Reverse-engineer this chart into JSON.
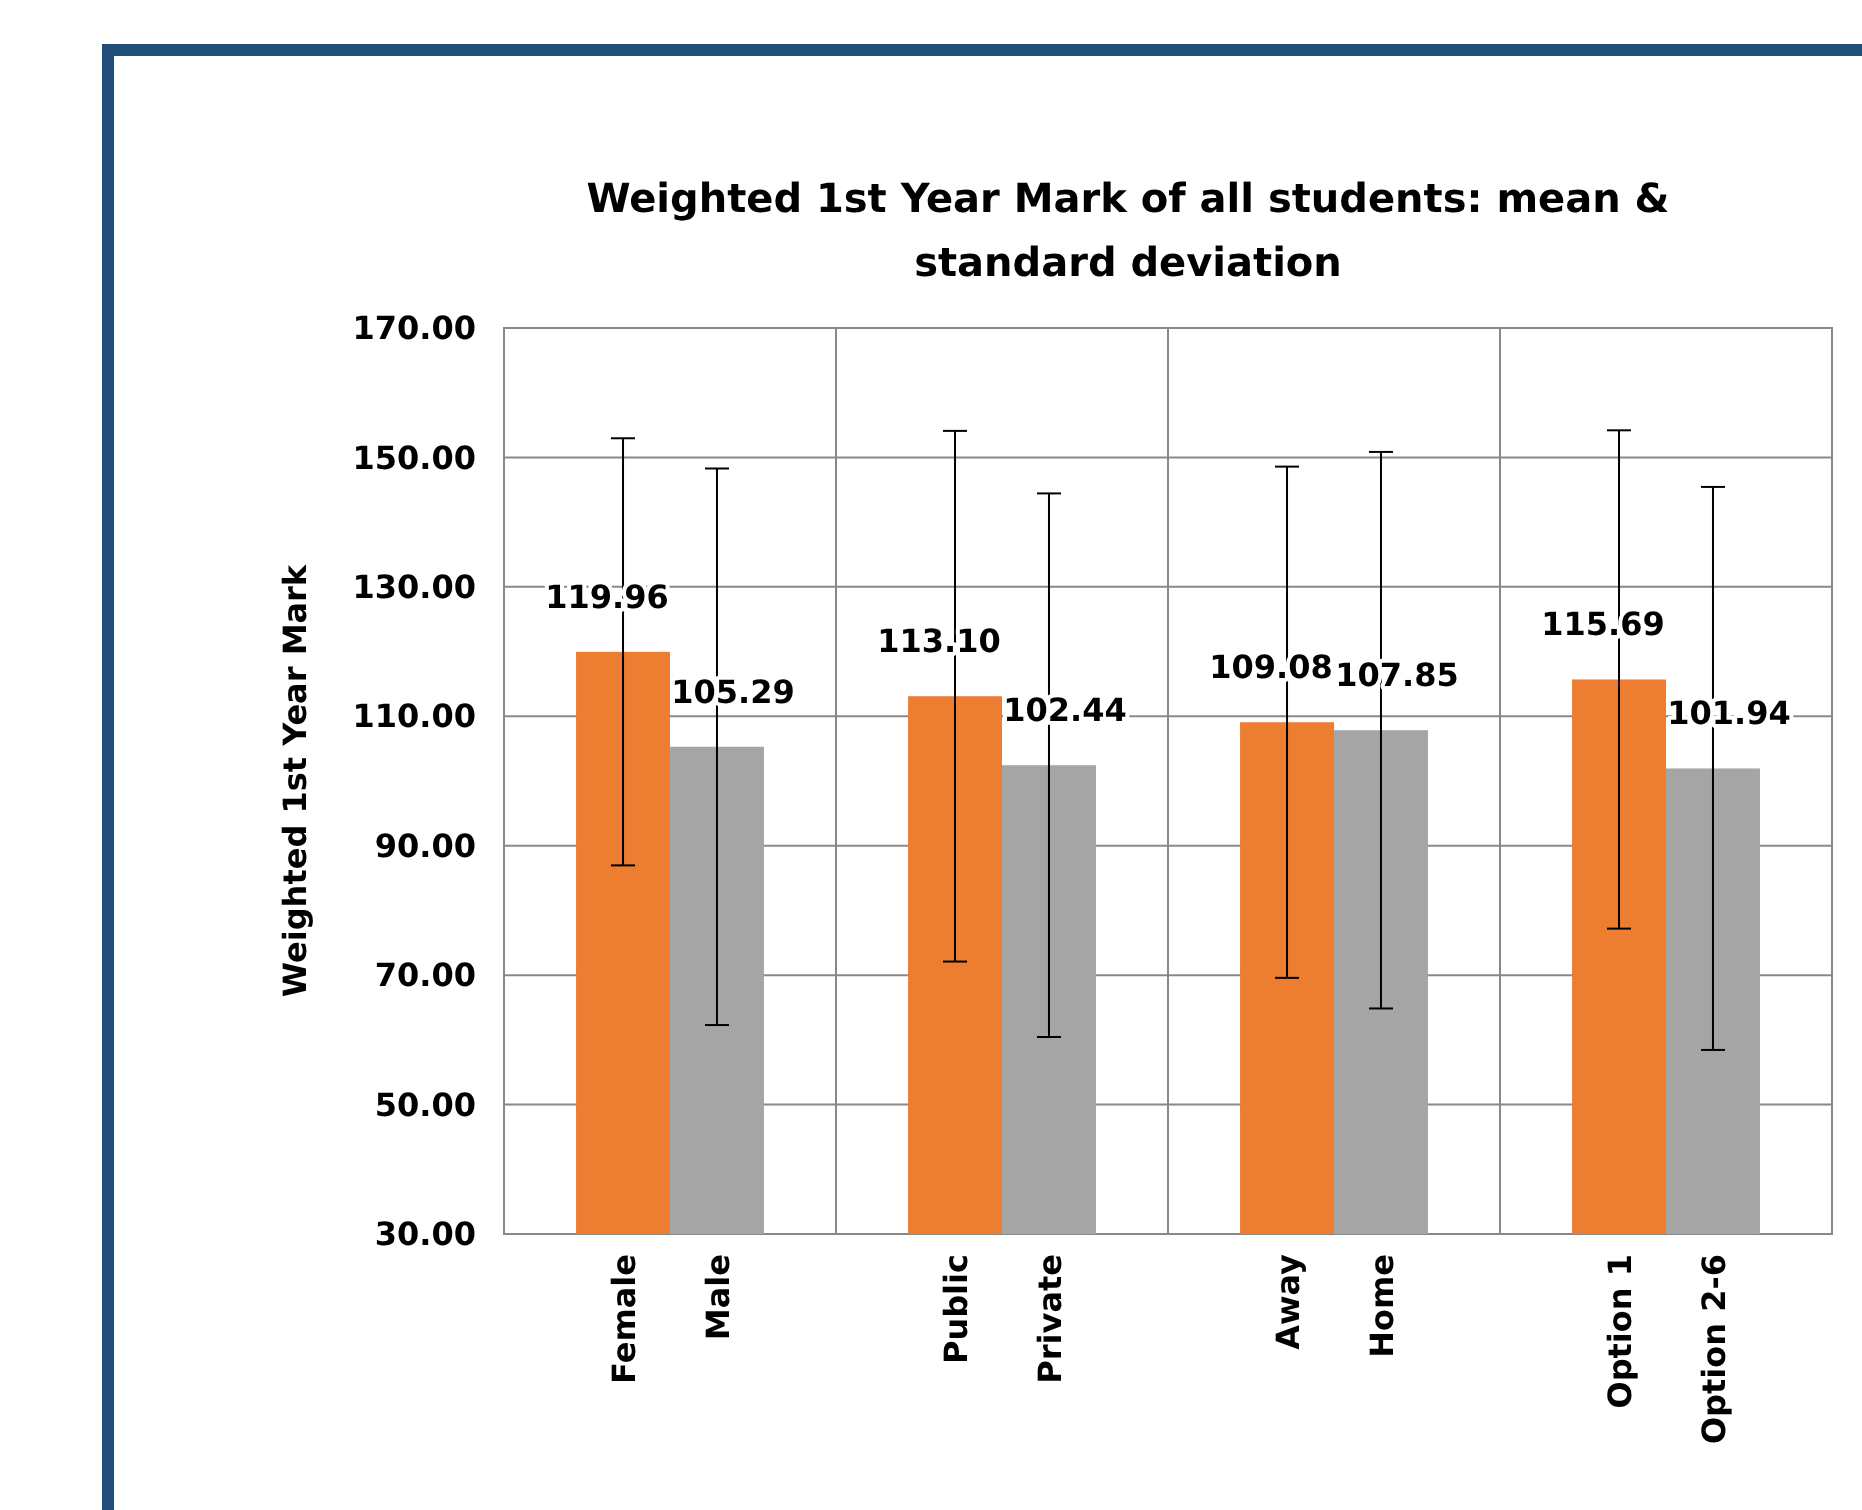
{
  "chart_data": {
    "type": "bar",
    "title": "Weighted 1st Year Mark of all students: mean & standard deviation",
    "ylabel": "Weighted 1st Year Mark",
    "categories": [
      "Female",
      "Male",
      "Public",
      "Private",
      "Away",
      "Home",
      "Option 1",
      "Option 2-6"
    ],
    "values": [
      119.96,
      105.29,
      113.1,
      102.44,
      109.08,
      107.85,
      115.69,
      101.94
    ],
    "value_labels": [
      "119.96",
      "105.29",
      "113.10",
      "102.44",
      "109.08",
      "107.85",
      "115.69",
      "101.94"
    ],
    "errors": [
      33,
      43,
      41,
      42,
      39.5,
      43,
      38.5,
      43.5
    ],
    "colors": [
      "#ed7d31",
      "#a5a5a5",
      "#ed7d31",
      "#a5a5a5",
      "#ed7d31",
      "#a5a5a5",
      "#ed7d31",
      "#a5a5a5"
    ],
    "ylim": [
      30,
      170
    ],
    "yticks": [
      {
        "value": 30,
        "label": "30.00"
      },
      {
        "value": 50,
        "label": "50.00"
      },
      {
        "value": 70,
        "label": "70.00"
      },
      {
        "value": 90,
        "label": "90.00"
      },
      {
        "value": 110,
        "label": "110.00"
      },
      {
        "value": 130,
        "label": "130.00"
      },
      {
        "value": 150,
        "label": "150.00"
      },
      {
        "value": 170,
        "label": "170.00"
      }
    ],
    "grid": true
  }
}
